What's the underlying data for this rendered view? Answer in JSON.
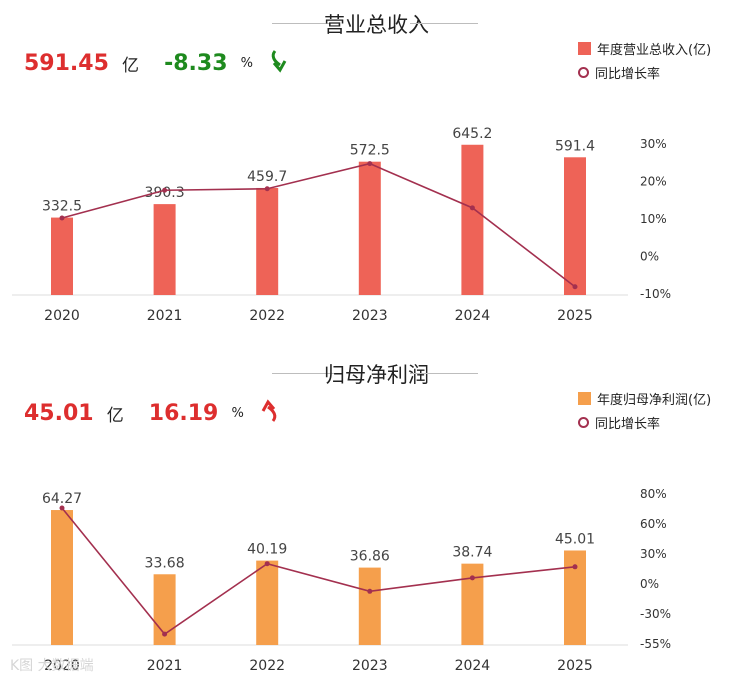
{
  "panels": [
    {
      "title": "营业总收入",
      "headline": {
        "value": "591.45",
        "unit": "亿",
        "pct": "-8.33",
        "pct_unit": "%",
        "pct_color": "#1e8a1e",
        "direction": "down"
      },
      "legend": {
        "bar_label": "年度营业总收入(亿)",
        "line_label": "同比增长率"
      },
      "colors": {
        "bar": "#ee6357",
        "line": "#a3304f"
      }
    },
    {
      "title": "归母净利润",
      "headline": {
        "value": "45.01",
        "unit": "亿",
        "pct": "16.19",
        "pct_unit": "%",
        "pct_color": "#dd2e2e",
        "direction": "up"
      },
      "legend": {
        "bar_label": "年度归母净利润(亿)",
        "line_label": "同比增长率"
      },
      "colors": {
        "bar": "#f59f4c",
        "line": "#a3304f"
      }
    }
  ],
  "chart_data": [
    {
      "type": "bar",
      "title": "营业总收入",
      "categories": [
        "2020",
        "2021",
        "2022",
        "2023",
        "2024",
        "2025"
      ],
      "series": [
        {
          "name": "年度营业总收入(亿)",
          "type": "bar",
          "values": [
            332.5,
            390.3,
            459.7,
            572.5,
            645.2,
            591.4
          ],
          "labels": [
            "332.5",
            "390.3",
            "459.7",
            "572.5",
            "645.2",
            "591.4"
          ]
        },
        {
          "name": "同比增长率",
          "type": "line",
          "axis": "right",
          "values": [
            10,
            17.4,
            17.8,
            24.5,
            12.7,
            -8.33
          ]
        }
      ],
      "y_left_range": [
        0,
        700
      ],
      "y_right_ticks": [
        30,
        20,
        10,
        0,
        -10
      ],
      "y_right_tick_labels": [
        "30%",
        "20%",
        "10%",
        "0%",
        "-10%"
      ],
      "y_right_range": [
        -10,
        30
      ],
      "legend_position": "top-right",
      "grid": false
    },
    {
      "type": "bar",
      "title": "归母净利润",
      "categories": [
        "2020",
        "2021",
        "2022",
        "2023",
        "2024",
        "2025"
      ],
      "series": [
        {
          "name": "年度归母净利润(亿)",
          "type": "bar",
          "values": [
            64.27,
            33.68,
            40.19,
            36.86,
            38.74,
            45.01
          ],
          "labels": [
            "64.27",
            "33.68",
            "40.19",
            "36.86",
            "38.74",
            "45.01"
          ]
        },
        {
          "name": "同比增长率",
          "type": "line",
          "axis": "right",
          "values": [
            70,
            -47.6,
            19.3,
            -8.3,
            5.1,
            16.19
          ]
        }
      ],
      "y_left_range": [
        0,
        70
      ],
      "y_right_ticks": [
        80,
        60,
        30,
        0,
        -30,
        -55
      ],
      "y_right_tick_labels": [
        "80%",
        "60%",
        "30%",
        "0%",
        "-30%",
        "-55%"
      ],
      "y_right_range": [
        -55,
        80
      ],
      "legend_position": "top-right",
      "grid": false
    }
  ],
  "watermark": "K图 大数据端"
}
